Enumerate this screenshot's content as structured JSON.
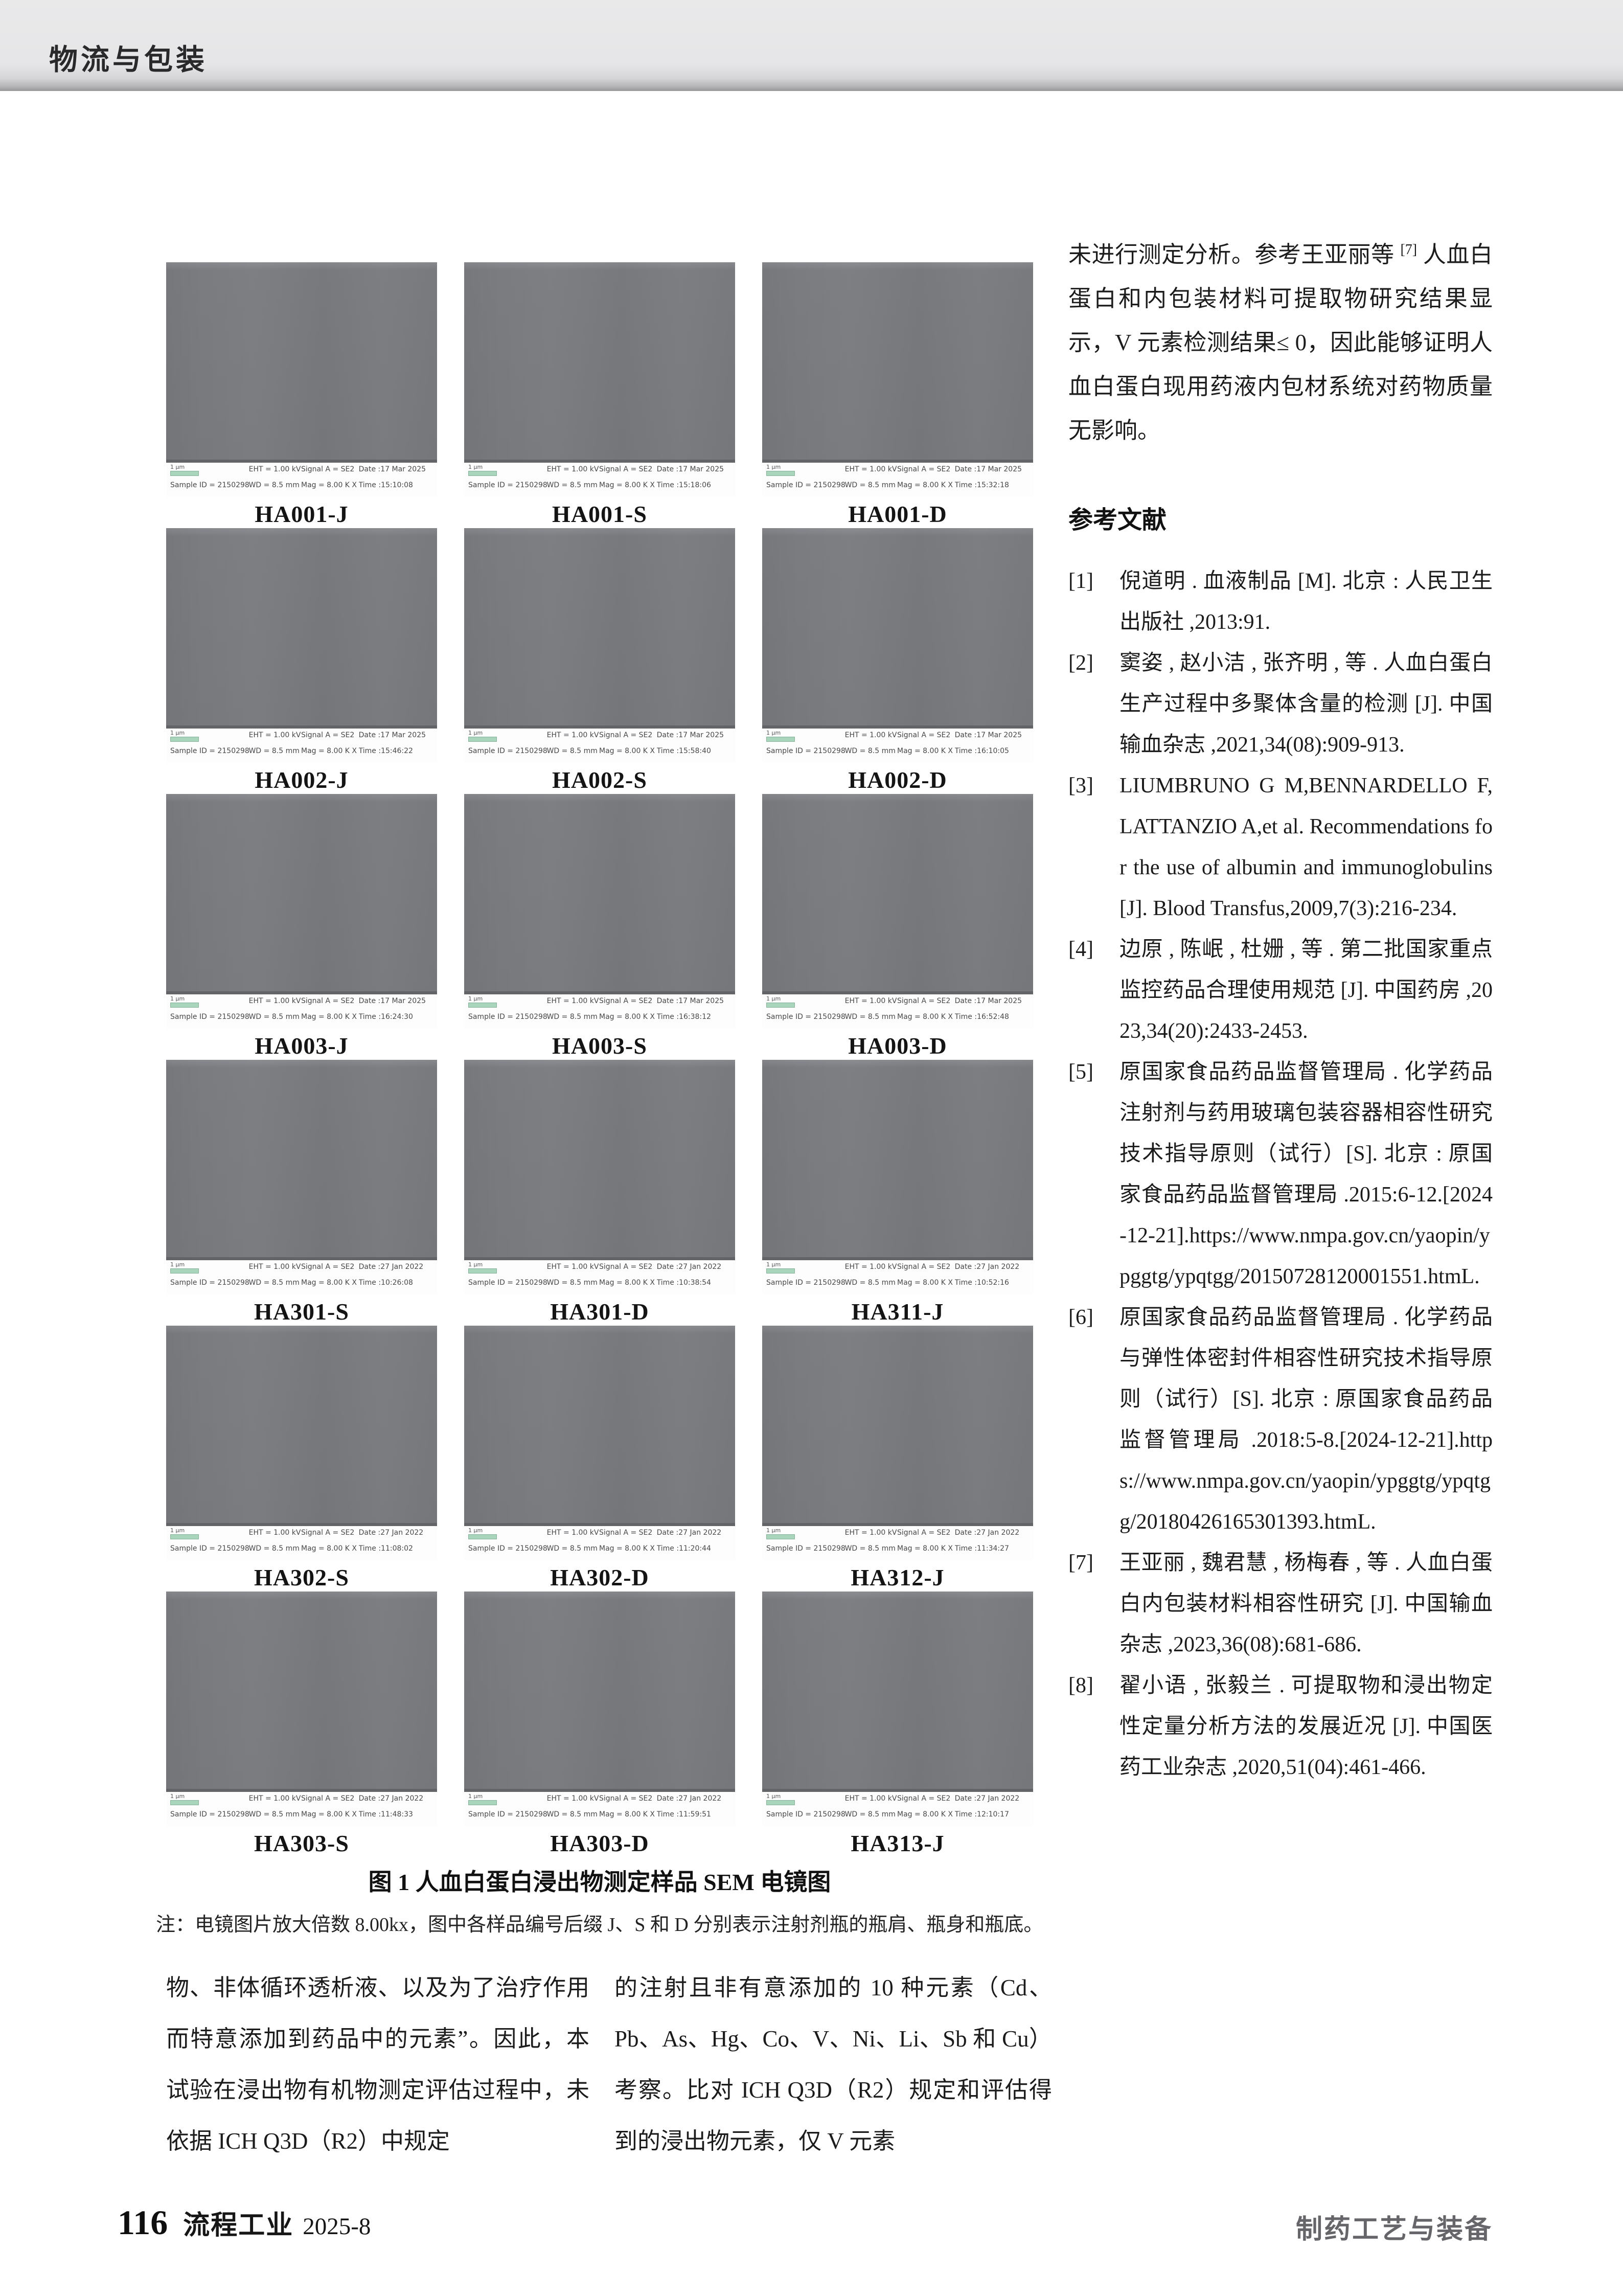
{
  "header": {
    "section": "物流与包装"
  },
  "figure": {
    "caption": "图 1  人血白蛋白浸出物测定样品 SEM 电镜图",
    "note": "注：电镜图片放大倍数 8.00kx，图中各样品编号后缀 J、S 和 D 分别表示注射剂瓶的瓶肩、瓶身和瓶底。",
    "sem_meta": {
      "scale_label": "1 μm",
      "eht": "EHT = 1.00 kV",
      "wd": "WD = 8.5 mm",
      "signal": "Signal A = SE2",
      "mag": "Mag = 8.00 K X",
      "sample_id": "Sample ID = 2150298B-8"
    },
    "cells": [
      {
        "label": "HA001-J",
        "date": "Date :17 Mar 2025",
        "time": "Time :15:10:08"
      },
      {
        "label": "HA001-S",
        "date": "Date :17 Mar 2025",
        "time": "Time :15:18:06"
      },
      {
        "label": "HA001-D",
        "date": "Date :17 Mar 2025",
        "time": "Time :15:32:18"
      },
      {
        "label": "HA002-J",
        "date": "Date :17 Mar 2025",
        "time": "Time :15:46:22"
      },
      {
        "label": "HA002-S",
        "date": "Date :17 Mar 2025",
        "time": "Time :15:58:40"
      },
      {
        "label": "HA002-D",
        "date": "Date :17 Mar 2025",
        "time": "Time :16:10:05"
      },
      {
        "label": "HA003-J",
        "date": "Date :17 Mar 2025",
        "time": "Time :16:24:30"
      },
      {
        "label": "HA003-S",
        "date": "Date :17 Mar 2025",
        "time": "Time :16:38:12"
      },
      {
        "label": "HA003-D",
        "date": "Date :17 Mar 2025",
        "time": "Time :16:52:48"
      },
      {
        "label": "HA301-S",
        "date": "Date :27 Jan 2022",
        "time": "Time :10:26:08"
      },
      {
        "label": "HA301-D",
        "date": "Date :27 Jan 2022",
        "time": "Time :10:38:54"
      },
      {
        "label": "HA311-J",
        "date": "Date :27 Jan 2022",
        "time": "Time :10:52:16"
      },
      {
        "label": "HA302-S",
        "date": "Date :27 Jan 2022",
        "time": "Time :11:08:02"
      },
      {
        "label": "HA302-D",
        "date": "Date :27 Jan 2022",
        "time": "Time :11:20:44"
      },
      {
        "label": "HA312-J",
        "date": "Date :27 Jan 2022",
        "time": "Time :11:34:27"
      },
      {
        "label": "HA303-S",
        "date": "Date :27 Jan 2022",
        "time": "Time :11:48:33"
      },
      {
        "label": "HA303-D",
        "date": "Date :27 Jan 2022",
        "time": "Time :11:59:51"
      },
      {
        "label": "HA313-J",
        "date": "Date :27 Jan 2022",
        "time": "Time :12:10:17"
      }
    ]
  },
  "bottom_left": {
    "col1": "物、非体循环透析液、以及为了治疗作用而特意添加到药品中的元素”。因此，本试验在浸出物有机物测定评估过程中，未依据 ICH Q3D（R2）中规定",
    "col2": "的注射且非有意添加的 10 种元素（Cd、Pb、As、Hg、Co、V、Ni、Li、Sb 和 Cu）考察。比对 ICH Q3D（R2）规定和评估得到的浸出物元素，仅 V 元素"
  },
  "right_column": {
    "intro_before": "未进行测定分析。参考王亚丽等 ",
    "intro_sup": "[7]",
    "intro_after": " 人血白蛋白和内包装材料可提取物研究结果显示，V 元素检测结果≤ 0，因此能够证明人血白蛋白现用药液内包材系统对药物质量无影响。",
    "references_title": "参考文献",
    "references": [
      {
        "id": "[1]",
        "text": "倪道明 . 血液制品 [M]. 北京 : 人民卫生出版社 ,2013:91."
      },
      {
        "id": "[2]",
        "text": "窦姿 , 赵小洁 , 张齐明 , 等 . 人血白蛋白生产过程中多聚体含量的检测 [J]. 中国输血杂志 ,2021,34(08):909-913."
      },
      {
        "id": "[3]",
        "text": "LIUMBRUNO G M,BENNARDELLO F,LATTANZIO A,et al. Recommendations for the use of albumin and immunoglobulins[J]. Blood Transfus,2009,7(3):216-234."
      },
      {
        "id": "[4]",
        "text": "边原 , 陈岷 , 杜姗 , 等 . 第二批国家重点监控药品合理使用规范 [J]. 中国药房 ,2023,34(20):2433-2453."
      },
      {
        "id": "[5]",
        "text": "原国家食品药品监督管理局 . 化学药品注射剂与药用玻璃包装容器相容性研究技术指导原则（试行）[S]. 北京 : 原国家食品药品监督管理局 .2015:6-12.[2024-12-21].https://www.nmpa.gov.cn/yaopin/ypggtg/ypqtgg/20150728120001551.htmL."
      },
      {
        "id": "[6]",
        "text": "原国家食品药品监督管理局 . 化学药品与弹性体密封件相容性研究技术指导原则（试行）[S]. 北京 : 原国家食品药品监督管理局 .2018:5-8.[2024-12-21].https://www.nmpa.gov.cn/yaopin/ypggtg/ypqtgg/20180426165301393.htmL."
      },
      {
        "id": "[7]",
        "text": "王亚丽 , 魏君慧 , 杨梅春 , 等 . 人血白蛋白内包装材料相容性研究 [J]. 中国输血杂志 ,2023,36(08):681-686."
      },
      {
        "id": "[8]",
        "text": "翟小语 , 张毅兰 . 可提取物和浸出物定性定量分析方法的发展近况 [J]. 中国医药工业杂志 ,2020,51(04):461-466."
      }
    ]
  },
  "footer": {
    "page_number": "116",
    "journal": "流程工业",
    "issue": "2025-8",
    "section_right": "制药工艺与装备"
  },
  "colors": {
    "sem_gray": "#77797d",
    "scalebar_green": "#a9d5bd",
    "header_bg": "#e9e9ea",
    "footer_right_gray": "#66666a"
  }
}
